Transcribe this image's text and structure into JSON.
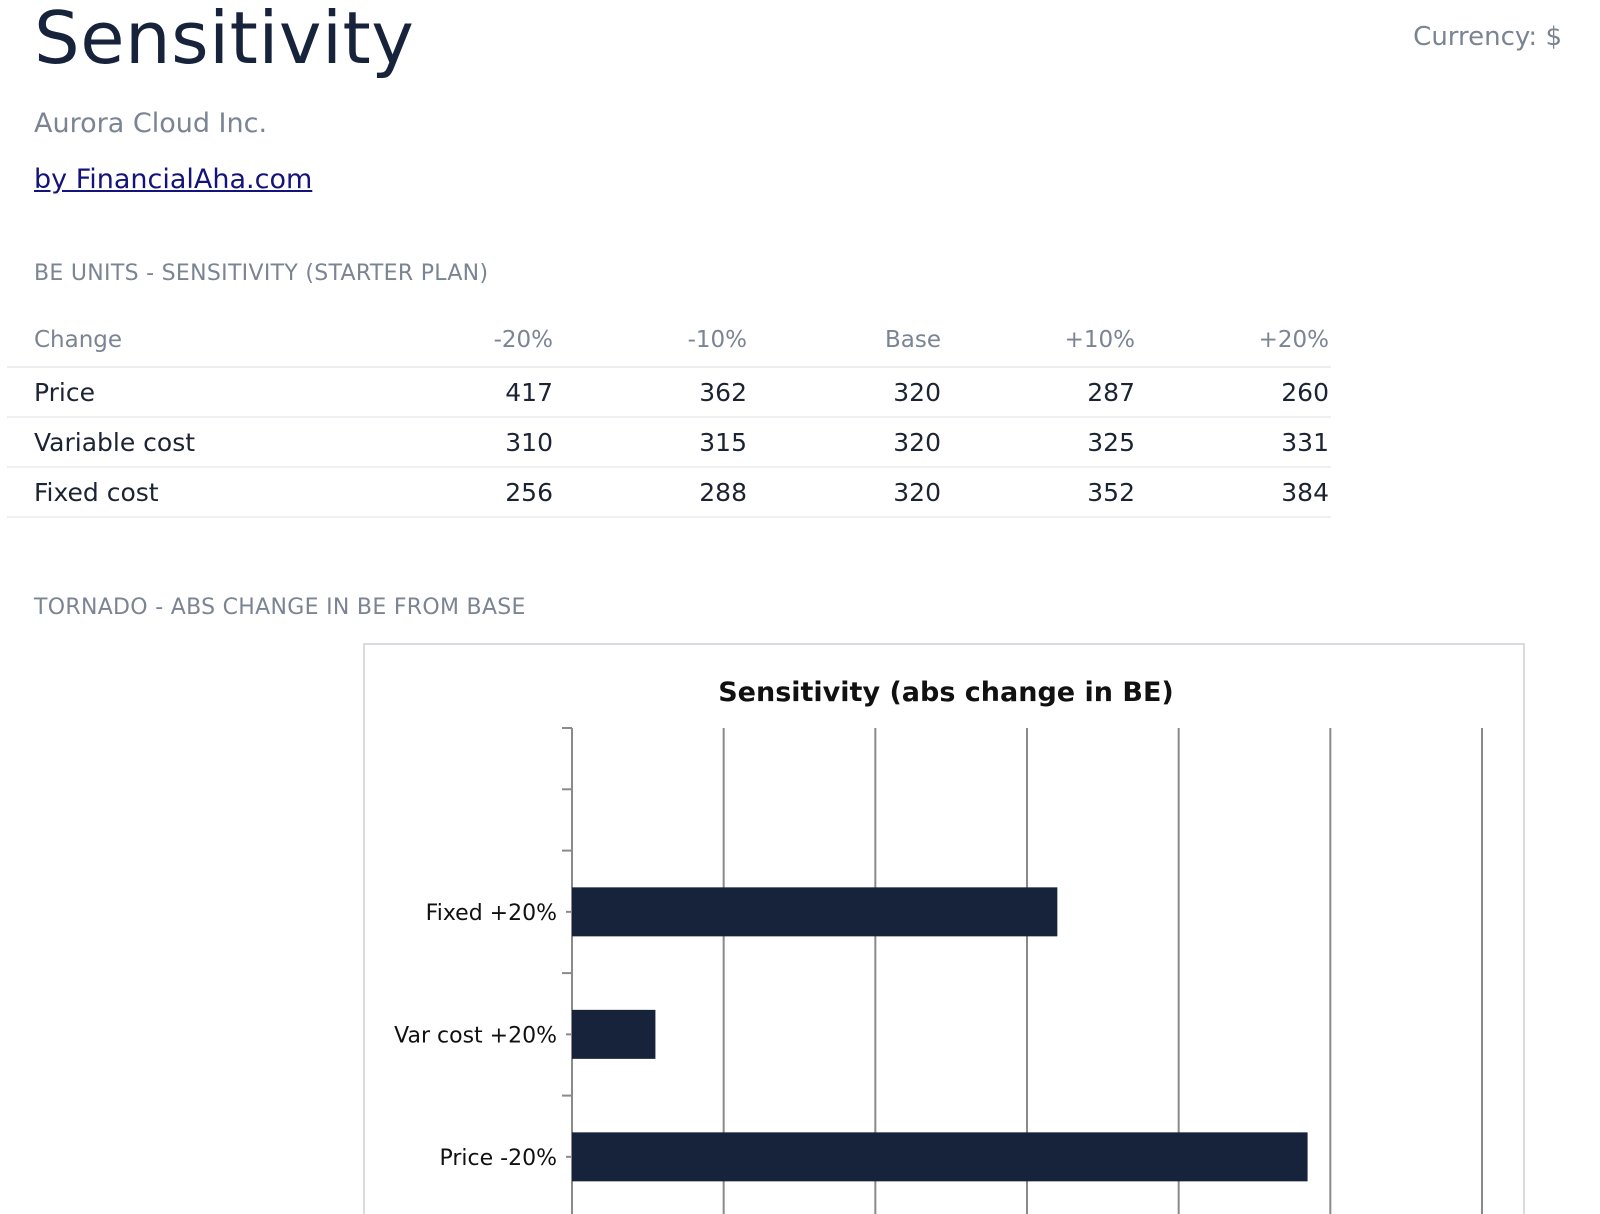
{
  "header": {
    "title": "Sensitivity",
    "currency": "Currency: $",
    "company": "Aurora Cloud Inc.",
    "link": "by FinancialAha.com"
  },
  "sections": {
    "be_units": "BE UNITS - SENSITIVITY (STARTER PLAN)",
    "tornado": "TORNADO - ABS CHANGE IN BE FROM BASE"
  },
  "table": {
    "columns": [
      "Change",
      "-20%",
      "-10%",
      "Base",
      "+10%",
      "+20%"
    ],
    "rows": [
      {
        "label": "Price",
        "values": [
          "417",
          "362",
          "320",
          "287",
          "260"
        ]
      },
      {
        "label": "Variable cost",
        "values": [
          "310",
          "315",
          "320",
          "325",
          "331"
        ]
      },
      {
        "label": "Fixed cost",
        "values": [
          "256",
          "288",
          "320",
          "352",
          "384"
        ]
      }
    ]
  },
  "colors": {
    "bar": "#17223b",
    "title": "#17223b",
    "muted": "#7b8493",
    "link": "#13137a"
  },
  "chart_data": {
    "type": "bar",
    "orientation": "horizontal",
    "title": "Sensitivity (abs change in BE)",
    "categories": [
      "Fixed +20%",
      "Var cost +20%",
      "Price -20%"
    ],
    "values": [
      64,
      11,
      97
    ],
    "xlim": [
      0,
      120
    ],
    "grid": true,
    "legend": "none"
  }
}
